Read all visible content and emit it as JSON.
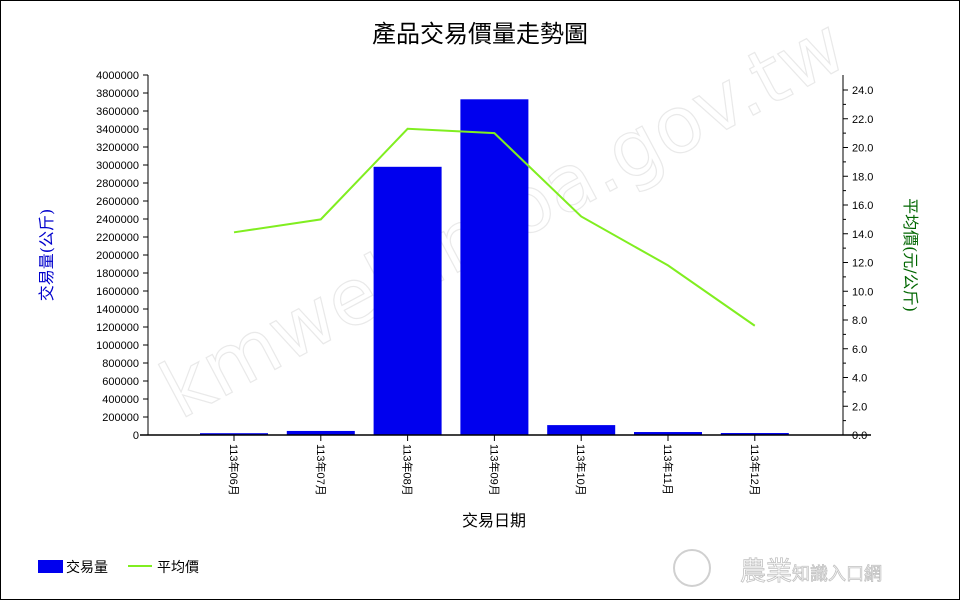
{
  "chart_data": {
    "type": "bar",
    "title": "產品交易價量走勢圖",
    "xlabel": "交易日期",
    "ylabel": "交易量(公斤)",
    "y2label": "平均價(元/公斤)",
    "categories": [
      "113年06月",
      "113年07月",
      "113年08月",
      "113年09月",
      "113年10月",
      "113年11月",
      "113年12月"
    ],
    "series": [
      {
        "name": "交易量",
        "type": "bar",
        "axis": "left",
        "color": "#0000ee",
        "values": [
          20000,
          45000,
          2980000,
          3730000,
          110000,
          33000,
          22000
        ]
      },
      {
        "name": "平均價",
        "type": "line",
        "axis": "right",
        "color": "#80ee20",
        "values": [
          14.1,
          15.0,
          21.3,
          21.0,
          15.2,
          11.8,
          7.6
        ]
      }
    ],
    "ylim": [
      0,
      4000000
    ],
    "y_ticks": [
      "0",
      "200000",
      "400000",
      "600000",
      "800000",
      "1000000",
      "1200000",
      "1400000",
      "1600000",
      "1800000",
      "2000000",
      "2200000",
      "2400000",
      "2600000",
      "2800000",
      "3000000",
      "3200000",
      "3400000",
      "3600000",
      "3800000",
      "4000000"
    ],
    "y2lim": [
      0,
      24
    ],
    "y2_ticks": [
      "0.0",
      "2.0",
      "4.0",
      "6.0",
      "8.0",
      "10.0",
      "12.0",
      "14.0",
      "16.0",
      "18.0",
      "20.0",
      "22.0",
      "24.0"
    ],
    "grid": false,
    "legend_placement": "bottom-left",
    "colors": {
      "ylabel": "#0000cc",
      "y2label": "#006600"
    }
  },
  "watermark": "kmweb.moa.gov.tw",
  "logo": "農業知識入口網"
}
